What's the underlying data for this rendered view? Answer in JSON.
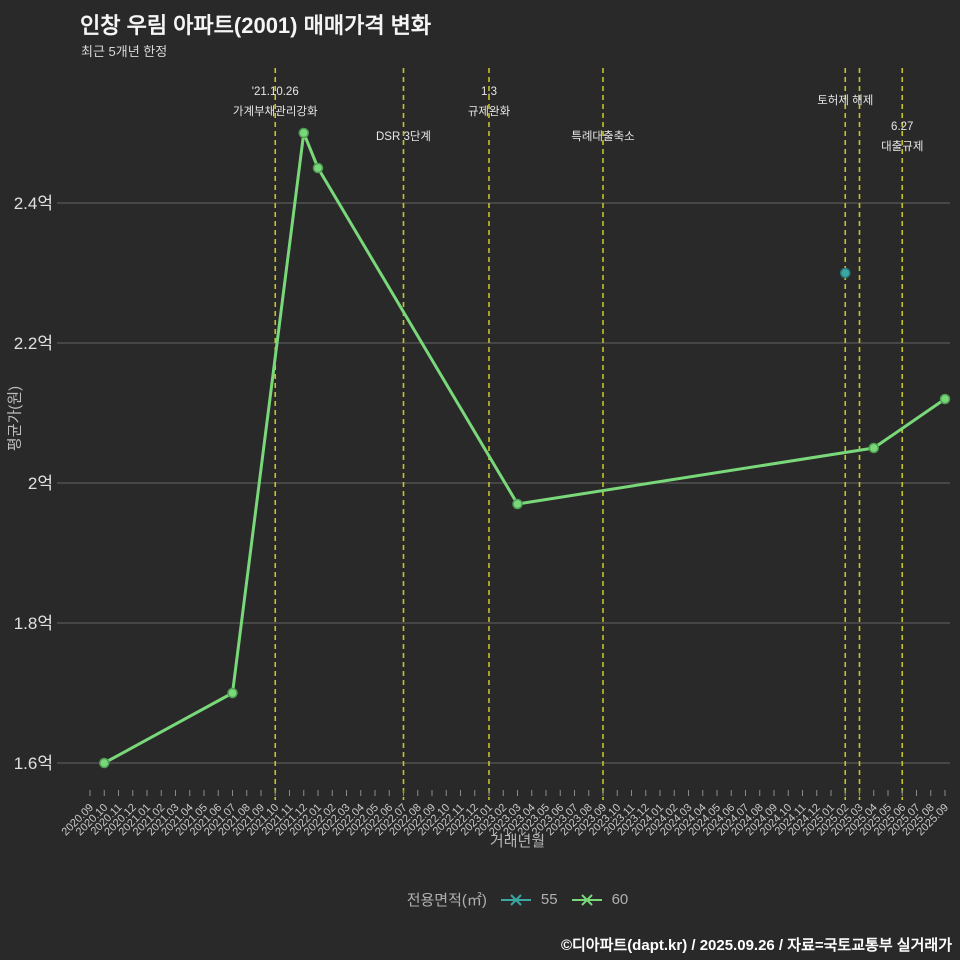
{
  "chart_data": {
    "type": "line",
    "title": "인창 우림 아파트(2001) 매매가격 변화",
    "subtitle": "최근 5개년 한정",
    "xlabel": "거래년월",
    "ylabel": "평균가(원)",
    "unit": "억",
    "ylim": [
      1.56,
      2.59
    ],
    "grid": true,
    "legend_position": "bottom-center",
    "background": "#2a2929",
    "grid_color": "#575757",
    "event_line_color": "#c3c32e",
    "y_ticks": [
      {
        "value": 2.4,
        "label": "2.4억"
      },
      {
        "value": 2.2,
        "label": "2.2억"
      },
      {
        "value": 2.0,
        "label": "2억"
      },
      {
        "value": 1.8,
        "label": "1.8억"
      },
      {
        "value": 1.6,
        "label": "1.6억"
      }
    ],
    "x_categories": [
      "2020.09",
      "2020.10",
      "2020.11",
      "2020.12",
      "2021.01",
      "2021.02",
      "2021.03",
      "2021.04",
      "2021.05",
      "2021.06",
      "2021.07",
      "2021.08",
      "2021.09",
      "2021.10",
      "2021.11",
      "2021.12",
      "2022.01",
      "2022.02",
      "2022.03",
      "2022.04",
      "2022.05",
      "2022.06",
      "2022.07",
      "2022.08",
      "2022.09",
      "2022.10",
      "2022.11",
      "2022.12",
      "2023.01",
      "2023.02",
      "2023.03",
      "2023.04",
      "2023.05",
      "2023.06",
      "2023.07",
      "2023.08",
      "2023.09",
      "2023.10",
      "2023.11",
      "2023.12",
      "2024.01",
      "2024.02",
      "2024.03",
      "2024.04",
      "2024.05",
      "2024.06",
      "2024.07",
      "2024.08",
      "2024.09",
      "2024.10",
      "2024.11",
      "2024.12",
      "2025.01",
      "2025.02",
      "2025.03",
      "2025.04",
      "2025.05",
      "2025.06",
      "2025.07",
      "2025.08",
      "2025.09"
    ],
    "series": [
      {
        "name": "55",
        "color": "#3aa7a3",
        "edge_color": "#267f7d",
        "points": [
          [
            "2025.02",
            2.3
          ]
        ]
      },
      {
        "name": "60",
        "color": "#79d879",
        "edge_color": "#4f9e54",
        "points": [
          [
            "2020.10",
            1.6
          ],
          [
            "2021.07",
            1.7
          ],
          [
            "2021.12",
            2.5
          ],
          [
            "2022.01",
            2.45
          ],
          [
            "2023.03",
            1.97
          ],
          [
            "2025.04",
            2.05
          ],
          [
            "2025.09",
            2.12
          ]
        ]
      }
    ],
    "events": [
      {
        "month": "2021.10",
        "lines": [
          "'21.10.26",
          "가계부채관리강화"
        ],
        "label_baseline": 95
      },
      {
        "month": "2022.07",
        "lines": [
          "DSR 3단계"
        ],
        "label_baseline": 140
      },
      {
        "month": "2023.01",
        "lines": [
          "1.3",
          "규제완화"
        ],
        "label_baseline": 95
      },
      {
        "month": "2023.09",
        "lines": [
          "특례대출축소"
        ],
        "label_baseline": 140
      },
      {
        "month": "2025.02",
        "lines": [
          "토허제 해제"
        ],
        "label_baseline": 104
      },
      {
        "month": "2025.03",
        "lines": []
      },
      {
        "month": "2025.06",
        "lines": [
          "6.27",
          "대출규제"
        ],
        "label_baseline": 130
      }
    ],
    "legend": {
      "title": "전용면적(㎡)",
      "entries": [
        {
          "label": "55"
        },
        {
          "label": "60"
        }
      ]
    },
    "footer": "©디아파트(dapt.kr) / 2025.09.26 / 자료=국토교통부 실거래가"
  }
}
